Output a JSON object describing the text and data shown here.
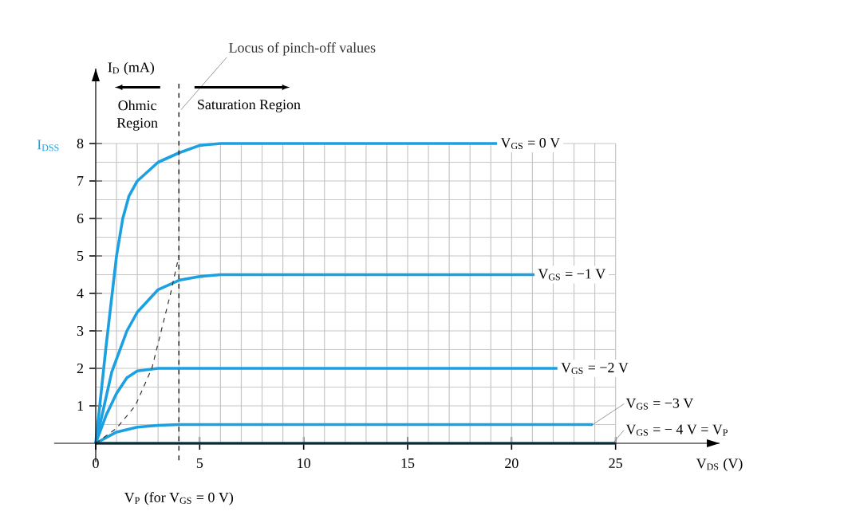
{
  "chart_data": {
    "type": "line",
    "xlabel": "V$_{DS}$ (V)",
    "ylabel": "I$_{D}$ (mA)",
    "xlim": [
      0,
      30
    ],
    "ylim": [
      0,
      10
    ],
    "xticks": [
      0,
      {
        "value": 1,
        "label": null
      },
      {
        "value": 2,
        "label": null
      },
      {
        "value": 3,
        "label": null
      },
      {
        "value": 4,
        "label": null
      },
      5,
      {
        "value": 6,
        "label": null
      },
      {
        "value": 7,
        "label": null
      },
      {
        "value": 8,
        "label": null
      },
      {
        "value": 9,
        "label": null
      },
      10,
      {
        "value": 11,
        "label": null
      },
      {
        "value": 12,
        "label": null
      },
      {
        "value": 13,
        "label": null
      },
      {
        "value": 14,
        "label": null
      },
      15,
      {
        "value": 16,
        "label": null
      },
      {
        "value": 17,
        "label": null
      },
      {
        "value": 18,
        "label": null
      },
      {
        "value": 19,
        "label": null
      },
      20,
      {
        "value": 21,
        "label": null
      },
      {
        "value": 22,
        "label": null
      },
      {
        "value": 23,
        "label": null
      },
      {
        "value": 24,
        "label": null
      },
      25
    ],
    "yticks": [
      {
        "value": 0.5,
        "label": null
      },
      1,
      {
        "value": 1.5,
        "label": null
      },
      2,
      {
        "value": 2.5,
        "label": null
      },
      3,
      {
        "value": 3.5,
        "label": null
      },
      4,
      {
        "value": 4.5,
        "label": null
      },
      5,
      {
        "value": 5.5,
        "label": null
      },
      6,
      {
        "value": 6.5,
        "label": null
      },
      7,
      {
        "value": 7.5,
        "label": null
      },
      8
    ],
    "grid": true,
    "marker": "none",
    "series": [
      {
        "name": "V$_{GS}$ = 0 V",
        "color": "#1ba1e2",
        "x": [
          0,
          0.5,
          1,
          1.3,
          1.6,
          2,
          3,
          4,
          5,
          6,
          19.3
        ],
        "values": [
          0,
          2.6,
          5,
          6,
          6.6,
          7,
          7.5,
          7.75,
          7.95,
          8,
          8
        ]
      },
      {
        "name": "V$_{GS}$ = −1 V",
        "color": "#1ba1e2",
        "x": [
          0,
          0.77,
          1.5,
          2,
          3,
          4,
          5,
          6,
          21.1
        ],
        "values": [
          0,
          1.9,
          3,
          3.5,
          4.1,
          4.35,
          4.45,
          4.5,
          4.5
        ]
      },
      {
        "name": "V$_{GS}$ = −2 V",
        "color": "#1ba1e2",
        "x": [
          0,
          0.5,
          1,
          1.5,
          2,
          3,
          22.2
        ],
        "values": [
          0,
          0.75,
          1.33,
          1.75,
          1.93,
          2,
          2
        ]
      },
      {
        "name": "V$_{GS}$ = −3 V",
        "color": "#1ba1e2",
        "x": [
          0,
          1,
          2,
          3,
          4,
          23.9
        ],
        "values": [
          0,
          0.3,
          0.43,
          0.48,
          0.5,
          0.5
        ]
      },
      {
        "name": "V$_{GS}$ = − 4 V = V$_{P}$",
        "color": "#1d4f60",
        "x": [
          0,
          25
        ],
        "values": [
          0,
          0
        ]
      },
      {
        "name": "Locus of pinch-off values",
        "color": "#333333",
        "line_style": "dashed",
        "x": [
          0,
          1,
          1.9,
          2.7,
          3.6,
          4
        ],
        "values": [
          0,
          0.4,
          1,
          2,
          4,
          5
        ]
      }
    ],
    "ref_lines": [
      {
        "axis": "x",
        "value": 4,
        "line_style": "dashed",
        "color": "#333333"
      }
    ],
    "annotations": [
      "Ohmic Region",
      "Saturation Region",
      "I$_{DSS}$",
      "V$_{P}$ (for V$_{GS}$ = 0 V)"
    ]
  }
}
